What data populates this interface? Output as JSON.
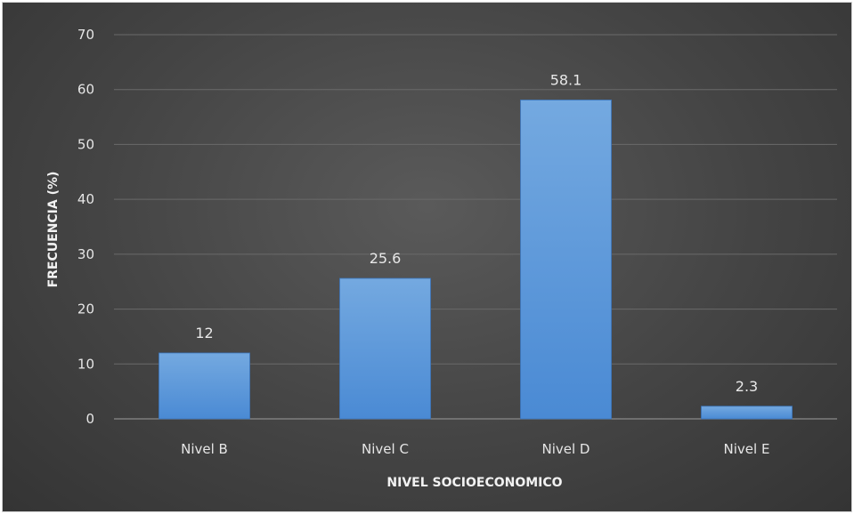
{
  "chart_data": {
    "type": "bar",
    "categories": [
      "Nivel B",
      "Nivel C",
      "Nivel D",
      "Nivel E"
    ],
    "values": [
      12,
      25.6,
      58.1,
      2.3
    ],
    "data_labels": [
      "12",
      "25.6",
      "58.1",
      "2.3"
    ],
    "xlabel": "NIVEL SOCIOECONOMICO",
    "ylabel": "FRECUENCIA (%)",
    "ylim": [
      0,
      70
    ],
    "yticks": [
      0,
      10,
      20,
      30,
      40,
      50,
      60,
      70
    ],
    "grid": true,
    "legend": "none",
    "colors": {
      "bar_top": "#74a9e0",
      "bar_bottom": "#4a8ad4",
      "background": "#484848",
      "gridline": "#6a6a6a",
      "text": "#e6e6e6"
    }
  }
}
